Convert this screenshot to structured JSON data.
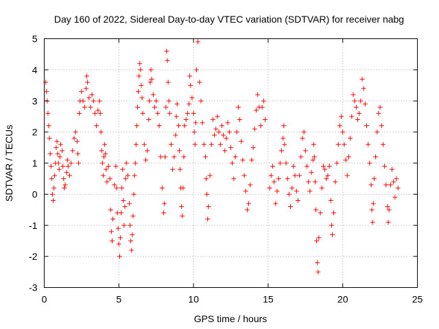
{
  "chart_data": {
    "type": "scatter",
    "title": "Day 160 of 2022, Sidereal Day-to-day VTEC variation (SDTVAR) for receiver nabg",
    "xlabel": "GPS time / hours",
    "ylabel": "SDTVAR / TECUs",
    "xlim": [
      0,
      25
    ],
    "ylim": [
      -3,
      5
    ],
    "xticks": [
      0,
      5,
      10,
      15,
      20,
      25
    ],
    "yticks": [
      -3,
      -2,
      -1,
      0,
      1,
      2,
      3,
      4,
      5
    ],
    "grid": true,
    "marker": "+",
    "color": "#ff0000",
    "series": [
      {
        "name": "SDTVAR",
        "points": [
          [
            0.1,
            3.6
          ],
          [
            0.15,
            3.3
          ],
          [
            0.2,
            3.0
          ],
          [
            0.25,
            2.6
          ],
          [
            0.3,
            2.2
          ],
          [
            0.35,
            1.8
          ],
          [
            0.4,
            1.3
          ],
          [
            0.45,
            0.9
          ],
          [
            0.5,
            0.5
          ],
          [
            0.55,
            0.0
          ],
          [
            0.6,
            -0.2
          ],
          [
            0.65,
            0.2
          ],
          [
            0.7,
            0.6
          ],
          [
            0.75,
            1.0
          ],
          [
            0.8,
            1.5
          ],
          [
            0.85,
            1.7
          ],
          [
            0.9,
            1.3
          ],
          [
            0.95,
            1.0
          ],
          [
            1.0,
            0.8
          ],
          [
            1.05,
            1.2
          ],
          [
            1.1,
            1.6
          ],
          [
            1.2,
            1.4
          ],
          [
            1.25,
            0.9
          ],
          [
            1.3,
            0.5
          ],
          [
            1.35,
            0.2
          ],
          [
            1.4,
            0.3
          ],
          [
            1.5,
            0.7
          ],
          [
            1.55,
            1.1
          ],
          [
            1.6,
            0.9
          ],
          [
            1.7,
            0.6
          ],
          [
            1.8,
            1.0
          ],
          [
            1.9,
            1.4
          ],
          [
            2.0,
            1.8
          ],
          [
            2.1,
            2.0
          ],
          [
            2.2,
            1.7
          ],
          [
            2.25,
            1.3
          ],
          [
            2.3,
            1.0
          ],
          [
            2.35,
            2.6
          ],
          [
            2.4,
            3.0
          ],
          [
            2.5,
            3.3
          ],
          [
            2.6,
            3.0
          ],
          [
            2.7,
            2.8
          ],
          [
            2.8,
            3.4
          ],
          [
            2.85,
            3.8
          ],
          [
            2.9,
            3.6
          ],
          [
            3.0,
            3.1
          ],
          [
            3.1,
            2.8
          ],
          [
            3.2,
            3.2
          ],
          [
            3.3,
            3.0
          ],
          [
            3.4,
            2.6
          ],
          [
            3.5,
            2.2
          ],
          [
            3.6,
            2.7
          ],
          [
            3.7,
            3.0
          ],
          [
            3.75,
            2.6
          ],
          [
            3.8,
            2.0
          ],
          [
            3.85,
            1.4
          ],
          [
            3.9,
            1.0
          ],
          [
            3.95,
            0.6
          ],
          [
            4.0,
            1.2
          ],
          [
            4.05,
            1.6
          ],
          [
            4.1,
            1.3
          ],
          [
            4.15,
            0.8
          ],
          [
            4.2,
            0.4
          ],
          [
            4.3,
            0.9
          ],
          [
            4.4,
            0.5
          ],
          [
            4.45,
            -0.5
          ],
          [
            4.5,
            -1.2
          ],
          [
            4.55,
            -1.5
          ],
          [
            4.6,
            -0.8
          ],
          [
            4.7,
            0.3
          ],
          [
            4.8,
            0.9
          ],
          [
            4.85,
            0.2
          ],
          [
            4.9,
            -0.6
          ],
          [
            4.95,
            -1.1
          ],
          [
            5.0,
            -1.6
          ],
          [
            5.05,
            -2.0
          ],
          [
            5.1,
            -1.4
          ],
          [
            5.15,
            -0.6
          ],
          [
            5.2,
            0.2
          ],
          [
            5.25,
            0.8
          ],
          [
            5.3,
            -0.2
          ],
          [
            5.35,
            -1.0
          ],
          [
            5.4,
            -0.4
          ],
          [
            5.45,
            0.5
          ],
          [
            5.5,
            1.0
          ],
          [
            5.6,
            0.6
          ],
          [
            5.7,
            -0.3
          ],
          [
            5.75,
            -1.0
          ],
          [
            5.8,
            -1.5
          ],
          [
            5.85,
            -1.8
          ],
          [
            5.9,
            -1.3
          ],
          [
            5.95,
            -0.7
          ],
          [
            6.0,
            0.0
          ],
          [
            6.05,
            0.6
          ],
          [
            6.1,
            1.0
          ],
          [
            6.15,
            1.6
          ],
          [
            6.2,
            2.2
          ],
          [
            6.25,
            2.8
          ],
          [
            6.3,
            3.3
          ],
          [
            6.35,
            3.8
          ],
          [
            6.4,
            4.2
          ],
          [
            6.45,
            4.0
          ],
          [
            6.5,
            3.5
          ],
          [
            6.55,
            3.1
          ],
          [
            6.6,
            2.6
          ],
          [
            6.7,
            1.6
          ],
          [
            6.8,
            1.1
          ],
          [
            6.9,
            1.4
          ],
          [
            7.0,
            2.4
          ],
          [
            7.05,
            3.0
          ],
          [
            7.1,
            3.6
          ],
          [
            7.15,
            4.0
          ],
          [
            7.2,
            3.7
          ],
          [
            7.3,
            3.2
          ],
          [
            7.4,
            2.8
          ],
          [
            7.5,
            3.0
          ],
          [
            7.6,
            2.6
          ],
          [
            7.7,
            2.2
          ],
          [
            7.8,
            1.2
          ],
          [
            7.9,
            0.2
          ],
          [
            8.0,
            -0.6
          ],
          [
            8.05,
            -0.3
          ],
          [
            8.1,
            1.2
          ],
          [
            8.15,
            2.8
          ],
          [
            8.2,
            4.6
          ],
          [
            8.25,
            4.3
          ],
          [
            8.3,
            3.6
          ],
          [
            8.35,
            3.0
          ],
          [
            8.4,
            2.6
          ],
          [
            8.5,
            1.6
          ],
          [
            8.6,
            0.8
          ],
          [
            8.7,
            1.2
          ],
          [
            8.8,
            1.9
          ],
          [
            8.85,
            2.5
          ],
          [
            8.9,
            2.9
          ],
          [
            9.0,
            2.2
          ],
          [
            9.05,
            1.4
          ],
          [
            9.1,
            0.8
          ],
          [
            9.15,
            0.2
          ],
          [
            9.2,
            -0.4
          ],
          [
            9.25,
            -0.7
          ],
          [
            9.3,
            0.2
          ],
          [
            9.35,
            1.2
          ],
          [
            9.4,
            2.2
          ],
          [
            9.5,
            2.4
          ],
          [
            9.6,
            2.6
          ],
          [
            9.7,
            2.9
          ],
          [
            9.75,
            3.8
          ],
          [
            9.8,
            3.5
          ],
          [
            9.9,
            3.1
          ],
          [
            10.0,
            2.6
          ],
          [
            10.05,
            2.0
          ],
          [
            10.1,
            1.6
          ],
          [
            10.15,
            2.3
          ],
          [
            10.2,
            4.0
          ],
          [
            10.3,
            4.9
          ],
          [
            10.4,
            3.6
          ],
          [
            10.5,
            3.0
          ],
          [
            10.6,
            2.3
          ],
          [
            10.7,
            1.6
          ],
          [
            10.8,
            1.2
          ],
          [
            10.85,
            0.5
          ],
          [
            10.9,
            0.0
          ],
          [
            10.95,
            -0.8
          ],
          [
            11.0,
            -0.4
          ],
          [
            11.1,
            0.6
          ],
          [
            11.2,
            1.6
          ],
          [
            11.3,
            2.4
          ],
          [
            11.4,
            1.9
          ],
          [
            11.5,
            2.1
          ],
          [
            11.6,
            2.5
          ],
          [
            11.7,
            2.0
          ],
          [
            11.8,
            1.6
          ],
          [
            11.9,
            2.2
          ],
          [
            12.0,
            1.9
          ],
          [
            12.1,
            1.4
          ],
          [
            12.2,
            1.8
          ],
          [
            12.3,
            2.3
          ],
          [
            12.4,
            2.0
          ],
          [
            12.5,
            1.5
          ],
          [
            12.6,
            1.0
          ],
          [
            12.7,
            0.5
          ],
          [
            12.8,
            1.2
          ],
          [
            12.9,
            2.0
          ],
          [
            13.0,
            2.8
          ],
          [
            13.1,
            2.4
          ],
          [
            13.2,
            1.7
          ],
          [
            13.3,
            1.1
          ],
          [
            13.4,
            0.6
          ],
          [
            13.5,
            0.1
          ],
          [
            13.6,
            -0.5
          ],
          [
            13.7,
            -0.3
          ],
          [
            13.8,
            0.3
          ],
          [
            13.9,
            1.1
          ],
          [
            14.0,
            1.5
          ],
          [
            14.1,
            2.1
          ],
          [
            14.2,
            2.7
          ],
          [
            14.3,
            3.2
          ],
          [
            14.4,
            2.8
          ],
          [
            14.5,
            2.2
          ],
          [
            14.6,
            2.8
          ],
          [
            14.7,
            3.0
          ],
          [
            14.8,
            2.4
          ],
          [
            15.1,
            0.2
          ],
          [
            15.2,
            0.6
          ],
          [
            15.3,
            0.9
          ],
          [
            15.4,
            0.4
          ],
          [
            15.5,
            -0.3
          ],
          [
            15.6,
            0.1
          ],
          [
            15.7,
            0.5
          ],
          [
            15.8,
            1.0
          ],
          [
            15.9,
            1.4
          ],
          [
            16.0,
            1.8
          ],
          [
            16.05,
            2.2
          ],
          [
            16.1,
            1.6
          ],
          [
            16.2,
            1.0
          ],
          [
            16.3,
            0.5
          ],
          [
            16.4,
            0.0
          ],
          [
            16.5,
            -0.4
          ],
          [
            16.6,
            0.2
          ],
          [
            16.7,
            0.9
          ],
          [
            16.8,
            0.6
          ],
          [
            16.9,
            0.1
          ],
          [
            17.0,
            -0.2
          ],
          [
            17.1,
            0.6
          ],
          [
            17.2,
            1.2
          ],
          [
            17.3,
            1.8
          ],
          [
            17.4,
            2.0
          ],
          [
            17.5,
            1.4
          ],
          [
            17.6,
            0.9
          ],
          [
            17.7,
            0.4
          ],
          [
            17.8,
            0.1
          ],
          [
            17.9,
            0.7
          ],
          [
            18.0,
            1.1
          ],
          [
            18.05,
            1.6
          ],
          [
            18.1,
            1.2
          ],
          [
            18.15,
            0.4
          ],
          [
            18.2,
            -0.5
          ],
          [
            18.25,
            -1.5
          ],
          [
            18.3,
            -2.2
          ],
          [
            18.35,
            -2.5
          ],
          [
            18.4,
            -1.4
          ],
          [
            18.5,
            -0.6
          ],
          [
            18.6,
            0.2
          ],
          [
            18.7,
            0.9
          ],
          [
            18.8,
            0.8
          ],
          [
            18.9,
            0.5
          ],
          [
            19.0,
            0.6
          ],
          [
            19.1,
            0.9
          ],
          [
            19.2,
            -0.2
          ],
          [
            19.25,
            -1.0
          ],
          [
            19.3,
            -1.3
          ],
          [
            19.4,
            -0.6
          ],
          [
            19.5,
            0.4
          ],
          [
            19.6,
            1.0
          ],
          [
            19.7,
            1.6
          ],
          [
            19.8,
            2.2
          ],
          [
            19.9,
            2.5
          ],
          [
            20.0,
            2.0
          ],
          [
            20.1,
            1.6
          ],
          [
            20.2,
            1.1
          ],
          [
            20.3,
            0.6
          ],
          [
            20.4,
            1.2
          ],
          [
            20.5,
            1.8
          ],
          [
            20.6,
            2.5
          ],
          [
            20.7,
            3.2
          ],
          [
            20.8,
            3.0
          ],
          [
            20.9,
            2.8
          ],
          [
            21.0,
            2.4
          ],
          [
            21.1,
            2.6
          ],
          [
            21.2,
            3.0
          ],
          [
            21.3,
            3.7
          ],
          [
            21.4,
            3.4
          ],
          [
            21.5,
            2.9
          ],
          [
            21.6,
            2.2
          ],
          [
            21.7,
            1.6
          ],
          [
            21.8,
            1.0
          ],
          [
            21.9,
            0.3
          ],
          [
            21.95,
            -0.5
          ],
          [
            22.0,
            -0.9
          ],
          [
            22.05,
            -0.3
          ],
          [
            22.1,
            0.5
          ],
          [
            22.2,
            1.2
          ],
          [
            22.3,
            2.0
          ],
          [
            22.4,
            2.6
          ],
          [
            22.5,
            2.8
          ],
          [
            22.6,
            2.2
          ],
          [
            22.7,
            1.6
          ],
          [
            22.8,
            0.9
          ],
          [
            22.9,
            0.3
          ],
          [
            23.0,
            -0.4
          ],
          [
            23.05,
            -0.9
          ],
          [
            23.1,
            -0.5
          ],
          [
            23.2,
            0.3
          ],
          [
            23.3,
            0.8
          ],
          [
            23.4,
            0.4
          ],
          [
            23.5,
            -0.1
          ],
          [
            23.6,
            0.5
          ],
          [
            23.7,
            0.2
          ]
        ]
      }
    ]
  }
}
